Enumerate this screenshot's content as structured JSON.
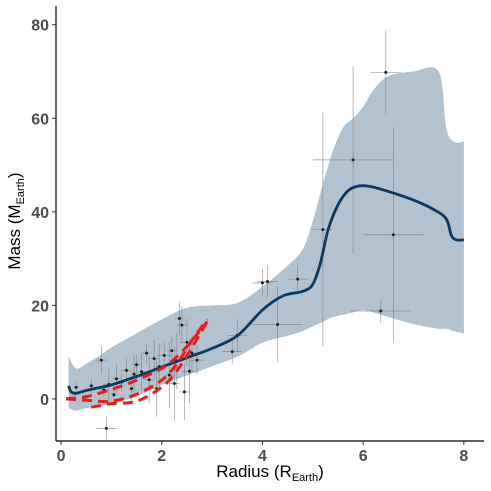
{
  "chart_data": {
    "type": "scatter",
    "title": "",
    "xlabel": "Radius",
    "xlabel_sub": "Earth",
    "xlabel_prefix": "Radius (R",
    "xlabel_suffix": ")",
    "ylabel_prefix": "Mass (M",
    "ylabel_sub": "Earth",
    "ylabel_suffix": ")",
    "xlim": [
      -0.1,
      8.4
    ],
    "ylim": [
      -9,
      84
    ],
    "x_ticks": [
      0,
      2,
      4,
      6,
      8
    ],
    "y_ticks": [
      0,
      20,
      40,
      60,
      80
    ],
    "grid": false,
    "colors": {
      "band": "#b3c2cf",
      "mean_line": "#0d3a5e",
      "dashed_line": "#e81c1c",
      "points": "#222222",
      "error_bars": "#7f7f7f",
      "axis": "#000000"
    },
    "band": {
      "x": [
        0.15,
        0.3,
        0.5,
        0.8,
        1.0,
        1.5,
        2.0,
        2.5,
        3.0,
        3.5,
        4.0,
        4.5,
        4.8,
        5.0,
        5.2,
        5.4,
        5.6,
        5.8,
        6.0,
        6.2,
        6.5,
        7.0,
        7.5,
        7.65,
        7.8,
        8.0
      ],
      "upper": [
        9.0,
        6.5,
        7.5,
        9.5,
        11.0,
        14.0,
        17.0,
        19.5,
        20.0,
        20.5,
        24.0,
        28.5,
        32.0,
        38.0,
        46.0,
        53.0,
        58.0,
        60.0,
        62.5,
        66.0,
        69.0,
        70.0,
        70.0,
        58.0,
        55.0,
        55.0
      ],
      "lower": [
        -2.0,
        -2.5,
        -2.0,
        -1.5,
        -1.0,
        0.5,
        3.0,
        5.0,
        7.0,
        9.0,
        12.0,
        13.5,
        14.5,
        15.5,
        16.5,
        17.5,
        18.0,
        18.5,
        19.0,
        18.5,
        17.5,
        16.0,
        15.0,
        15.0,
        14.5,
        14.0
      ]
    },
    "series": [
      {
        "style": "solid",
        "x": [
          0.15,
          0.2,
          0.3,
          0.5,
          0.8,
          1.0,
          1.5,
          2.0,
          2.5,
          3.0,
          3.5,
          4.0,
          4.4,
          4.8,
          5.0,
          5.15,
          5.3,
          5.5,
          5.7,
          5.9,
          6.1,
          6.3,
          6.6,
          7.0,
          7.4,
          7.65,
          7.75,
          7.85,
          8.0
        ],
        "y": [
          2.8,
          1.5,
          1.2,
          1.8,
          2.5,
          3.0,
          4.8,
          6.8,
          8.8,
          10.8,
          13.5,
          19.0,
          22.0,
          23.0,
          24.5,
          29.0,
          36.0,
          41.5,
          44.5,
          45.5,
          45.5,
          45.0,
          44.0,
          42.5,
          40.5,
          38.5,
          35.0,
          34.0,
          34.0
        ]
      },
      {
        "style": "dashed",
        "x": [
          0.1,
          0.5,
          1.0,
          1.5,
          2.0,
          2.3,
          2.6,
          2.9
        ],
        "y": [
          0.0,
          0.5,
          2.0,
          4.0,
          6.5,
          9.0,
          12.5,
          16.5
        ]
      },
      {
        "style": "dashed",
        "x": [
          0.1,
          0.5,
          1.0,
          1.5,
          2.0,
          2.3,
          2.6,
          2.9
        ],
        "y": [
          0.0,
          -0.3,
          -0.5,
          1.0,
          4.0,
          7.5,
          12.5,
          17.0
        ]
      },
      {
        "style": "dashed",
        "x": [
          0.6,
          1.0,
          1.5,
          2.0,
          2.3,
          2.6,
          2.9
        ],
        "y": [
          -1.8,
          -1.0,
          -0.5,
          2.5,
          6.0,
          11.0,
          16.5
        ]
      }
    ],
    "points": [
      {
        "x": 0.3,
        "y": 2.5,
        "xerr": 0.05,
        "yerr": 1.0
      },
      {
        "x": 0.6,
        "y": 2.8,
        "xerr": 0.05,
        "yerr": 1.5
      },
      {
        "x": 0.8,
        "y": 8.3,
        "xerr": 0.1,
        "yerr": 3.0
      },
      {
        "x": 0.85,
        "y": 1.9,
        "xerr": 0.1,
        "yerr": 1.5
      },
      {
        "x": 0.9,
        "y": -6.3,
        "xerr": 0.2,
        "yerr": 2.5
      },
      {
        "x": 0.95,
        "y": 3.1,
        "xerr": 0.1,
        "yerr": 3.5
      },
      {
        "x": 1.05,
        "y": 0.9,
        "xerr": 0.05,
        "yerr": 2.0
      },
      {
        "x": 1.1,
        "y": 4.3,
        "xerr": 0.1,
        "yerr": 3.0
      },
      {
        "x": 1.2,
        "y": 3.6,
        "xerr": 0.05,
        "yerr": 2.0
      },
      {
        "x": 1.3,
        "y": 6.1,
        "xerr": 0.1,
        "yerr": 2.5
      },
      {
        "x": 1.4,
        "y": 2.2,
        "xerr": 0.05,
        "yerr": 3.0
      },
      {
        "x": 1.45,
        "y": 5.3,
        "xerr": 0.05,
        "yerr": 4.0
      },
      {
        "x": 1.5,
        "y": 7.3,
        "xerr": 0.1,
        "yerr": 2.0
      },
      {
        "x": 1.6,
        "y": 5.8,
        "xerr": 0.1,
        "yerr": 4.0
      },
      {
        "x": 1.7,
        "y": 9.8,
        "xerr": 0.1,
        "yerr": 2.0
      },
      {
        "x": 1.75,
        "y": 4.1,
        "xerr": 0.1,
        "yerr": 5.0
      },
      {
        "x": 1.85,
        "y": 8.6,
        "xerr": 0.1,
        "yerr": 4.0
      },
      {
        "x": 1.9,
        "y": 2.2,
        "xerr": 0.1,
        "yerr": 6.0
      },
      {
        "x": 1.95,
        "y": 6.9,
        "xerr": 0.1,
        "yerr": 5.0
      },
      {
        "x": 2.05,
        "y": 9.3,
        "xerr": 0.15,
        "yerr": 3.0
      },
      {
        "x": 2.15,
        "y": 5.1,
        "xerr": 0.1,
        "yerr": 7.0
      },
      {
        "x": 2.2,
        "y": 10.3,
        "xerr": 0.1,
        "yerr": 3.0
      },
      {
        "x": 2.25,
        "y": 3.3,
        "xerr": 0.1,
        "yerr": 8.0
      },
      {
        "x": 2.3,
        "y": 8.1,
        "xerr": 0.15,
        "yerr": 6.0
      },
      {
        "x": 2.35,
        "y": 17.2,
        "xerr": 0.1,
        "yerr": 3.5
      },
      {
        "x": 2.4,
        "y": 15.8,
        "xerr": 0.1,
        "yerr": 4.0
      },
      {
        "x": 2.45,
        "y": 1.5,
        "xerr": 0.1,
        "yerr": 6.0
      },
      {
        "x": 2.5,
        "y": 12.1,
        "xerr": 0.15,
        "yerr": 5.0
      },
      {
        "x": 2.55,
        "y": 5.9,
        "xerr": 0.15,
        "yerr": 7.0
      },
      {
        "x": 2.6,
        "y": 9.8,
        "xerr": 0.15,
        "yerr": 4.0
      },
      {
        "x": 2.7,
        "y": 8.3,
        "xerr": 0.15,
        "yerr": 3.0
      },
      {
        "x": 3.4,
        "y": 10.1,
        "xerr": 0.2,
        "yerr": 2.5
      },
      {
        "x": 3.5,
        "y": 13.6,
        "xerr": 0.2,
        "yerr": 3.5
      },
      {
        "x": 4.0,
        "y": 24.8,
        "xerr": 0.2,
        "yerr": 3.0
      },
      {
        "x": 4.1,
        "y": 25.1,
        "xerr": 0.2,
        "yerr": 3.5
      },
      {
        "x": 4.3,
        "y": 15.9,
        "xerr": 0.5,
        "yerr": 8.0
      },
      {
        "x": 4.7,
        "y": 25.6,
        "xerr": 0.2,
        "yerr": 3.0
      },
      {
        "x": 5.2,
        "y": 36.2,
        "xerr": 0.2,
        "yerr": 25.0
      },
      {
        "x": 5.8,
        "y": 51.1,
        "xerr": 0.8,
        "yerr": 20.0
      },
      {
        "x": 6.35,
        "y": 18.8,
        "xerr": 0.6,
        "yerr": 2.5
      },
      {
        "x": 6.45,
        "y": 69.8,
        "xerr": 0.3,
        "yerr": 9.0
      },
      {
        "x": 6.6,
        "y": 35.1,
        "xerr": 0.6,
        "yerr": 23.0
      }
    ]
  }
}
